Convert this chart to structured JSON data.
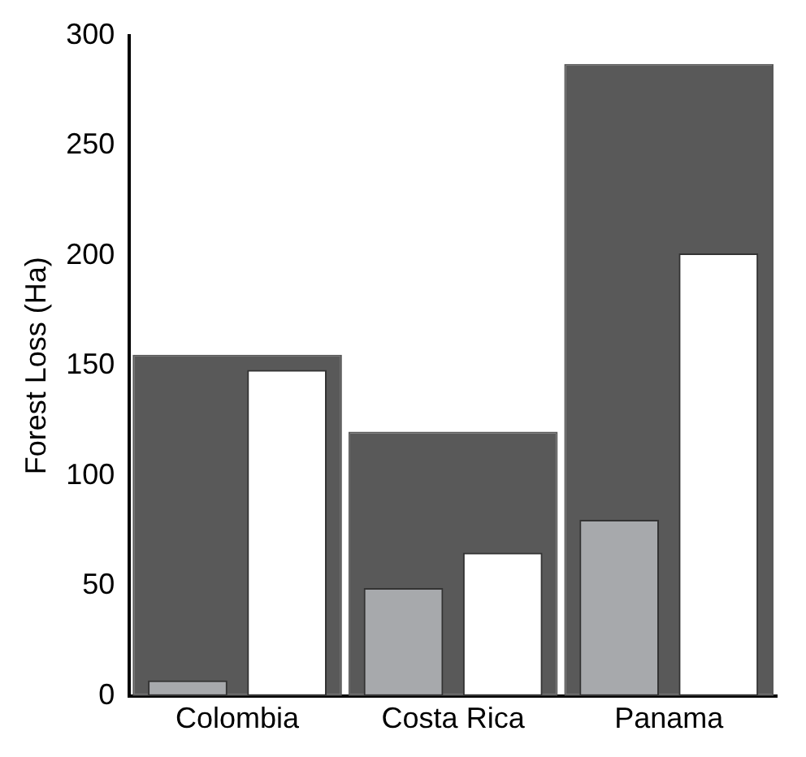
{
  "chart_data": {
    "type": "bar",
    "ylabel": "Forest Loss (Ha)",
    "categories": [
      "Colombia",
      "Costa Rica",
      "Panama"
    ],
    "series": [
      {
        "color": "#a7a9ac",
        "values": [
          7,
          49,
          80
        ]
      },
      {
        "color": "#595959",
        "values": [
          155,
          120,
          287
        ]
      },
      {
        "color": "#ffffff",
        "values": [
          148,
          65,
          201
        ]
      }
    ],
    "ylim": [
      0,
      300
    ],
    "yticks": [
      0,
      50,
      100,
      150,
      200,
      250,
      300
    ],
    "grid": false,
    "legend": false
  }
}
